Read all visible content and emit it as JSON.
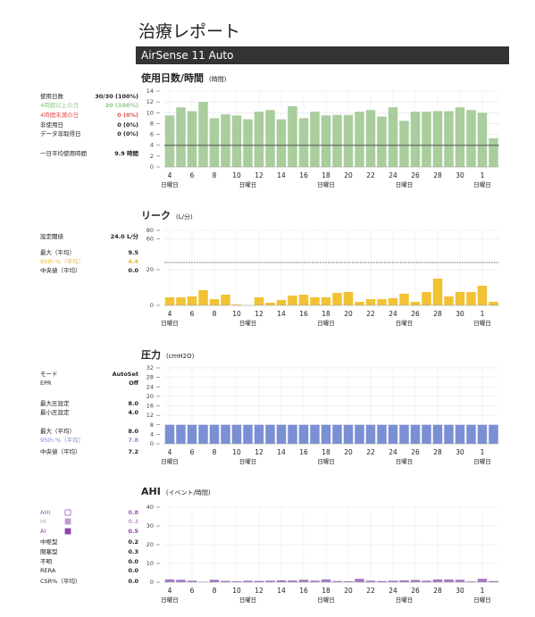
{
  "header": {
    "title": "治療レポート",
    "device": "AirSense 11 Auto"
  },
  "chart_data": [
    {
      "type": "bar",
      "title": "使用日数/時間",
      "unit": "(時間)",
      "color": "#a9cd9d",
      "grid": true,
      "reference_line": 4,
      "categories": [
        "4",
        null,
        "6",
        null,
        "8",
        null,
        "10",
        null,
        "12",
        null,
        "14",
        null,
        "16",
        null,
        "18",
        null,
        "20",
        null,
        "22",
        null,
        "24",
        null,
        "26",
        null,
        "28",
        null,
        "30",
        null,
        "1",
        null
      ],
      "week_labels": [
        "日曜日",
        null,
        null,
        null,
        null,
        null,
        null,
        "日曜日",
        null,
        null,
        null,
        null,
        null,
        null,
        "日曜日",
        null,
        null,
        null,
        null,
        null,
        null,
        "日曜日",
        null,
        null,
        null,
        null,
        null,
        null,
        "日曜日",
        null
      ],
      "values": [
        9.5,
        11,
        10.3,
        12,
        9,
        9.7,
        9.5,
        8.8,
        10.2,
        10.5,
        8.8,
        11.2,
        9,
        10.2,
        9.5,
        9.6,
        9.6,
        10.2,
        10.5,
        9.3,
        11,
        8.5,
        10.2,
        10.2,
        10.3,
        10.3,
        11,
        10.5,
        10,
        5.3
      ],
      "ylim": [
        0,
        14
      ],
      "yticks": [
        0,
        2,
        4,
        6,
        8,
        10,
        12,
        14
      ],
      "stats": [
        {
          "label": "使用日数",
          "value": "30/30 (100%)"
        },
        {
          "label": "4時間以上の日",
          "value": "30 (100%)",
          "color": "#8fc48a"
        },
        {
          "label": "4時間未満の日",
          "value": "0 (0%)",
          "color": "#e0504a"
        },
        {
          "label": "非使用日",
          "value": "0 (0%)"
        },
        {
          "label": "データ非取得日",
          "value": "0 (0%)"
        },
        {
          "label": "一日平均使用時間",
          "value": "9.9 時間"
        }
      ]
    },
    {
      "type": "bar",
      "title": "リーク",
      "unit": "(L/分)",
      "color": "#f2c234",
      "grid": true,
      "threshold": 24,
      "categories": [
        "4",
        null,
        "6",
        null,
        "8",
        null,
        "10",
        null,
        "12",
        null,
        "14",
        null,
        "16",
        null,
        "18",
        null,
        "20",
        null,
        "22",
        null,
        "24",
        null,
        "26",
        null,
        "28",
        null,
        "30",
        null,
        "1",
        null
      ],
      "week_labels": [
        "日曜日",
        null,
        null,
        null,
        null,
        null,
        null,
        "日曜日",
        null,
        null,
        null,
        null,
        null,
        null,
        "日曜日",
        null,
        null,
        null,
        null,
        null,
        null,
        "日曜日",
        null,
        null,
        null,
        null,
        null,
        null,
        "日曜日",
        null
      ],
      "values": [
        4.5,
        4.5,
        5,
        8.5,
        3.5,
        6,
        0.5,
        0,
        4.5,
        1.5,
        3,
        5.5,
        6,
        4.5,
        4.5,
        7,
        7.5,
        2,
        3.5,
        3.5,
        4,
        6.5,
        2,
        7.5,
        15,
        5,
        7.5,
        7.5,
        11,
        2
      ],
      "ylim": [
        0,
        80
      ],
      "yticks": [
        0,
        20,
        60,
        80
      ],
      "stats": [
        {
          "label": "設定閾値",
          "value": "24.0 L/分"
        },
        {
          "label": "最大（平均）",
          "value": "9.5"
        },
        {
          "label": "95th %（平均）",
          "value": "4.4",
          "color": "#e8b830"
        },
        {
          "label": "中央値（平均）",
          "value": "0.0"
        }
      ]
    },
    {
      "type": "bar",
      "title": "圧力",
      "unit": "(cmH2O)",
      "color": "#7b8fd4",
      "grid": true,
      "categories": [
        "4",
        null,
        "6",
        null,
        "8",
        null,
        "10",
        null,
        "12",
        null,
        "14",
        null,
        "16",
        null,
        "18",
        null,
        "20",
        null,
        "22",
        null,
        "24",
        null,
        "26",
        null,
        "28",
        null,
        "30",
        null,
        "1",
        null
      ],
      "week_labels": [
        "日曜日",
        null,
        null,
        null,
        null,
        null,
        null,
        "日曜日",
        null,
        null,
        null,
        null,
        null,
        null,
        "日曜日",
        null,
        null,
        null,
        null,
        null,
        null,
        "日曜日",
        null,
        null,
        null,
        null,
        null,
        null,
        "日曜日",
        null
      ],
      "values": [
        8,
        8,
        8,
        8,
        8,
        8,
        8,
        8,
        8,
        8,
        8,
        8,
        8,
        8,
        8,
        8,
        8,
        8,
        8,
        8,
        8,
        8,
        8,
        8,
        8,
        8,
        8,
        8,
        8,
        8
      ],
      "ylim": [
        0,
        32
      ],
      "yticks": [
        0,
        4,
        8,
        12,
        16,
        20,
        24,
        28,
        32
      ],
      "stats": [
        {
          "label": "モード",
          "value": "AutoSet"
        },
        {
          "label": "EPR",
          "value": "Off"
        },
        {
          "label": "最大圧設定",
          "value": "8.0"
        },
        {
          "label": "最小圧設定",
          "value": "4.0"
        },
        {
          "label": "最大（平均）",
          "value": "8.0"
        },
        {
          "label": "95th %（平均）",
          "value": "7.8",
          "color": "#7b8fd4"
        },
        {
          "label": "中央値（平均）",
          "value": "7.2"
        }
      ]
    },
    {
      "type": "bar",
      "title": "AHI",
      "unit": "(イベント/時間)",
      "color": "#a57ac4",
      "grid": true,
      "categories": [
        "4",
        null,
        "6",
        null,
        "8",
        null,
        "10",
        null,
        "12",
        null,
        "14",
        null,
        "16",
        null,
        "18",
        null,
        "20",
        null,
        "22",
        null,
        "24",
        null,
        "26",
        null,
        "28",
        null,
        "30",
        null,
        "1",
        null
      ],
      "week_labels": [
        "日曜日",
        null,
        null,
        null,
        null,
        null,
        null,
        "日曜日",
        null,
        null,
        null,
        null,
        null,
        null,
        "日曜日",
        null,
        null,
        null,
        null,
        null,
        null,
        "日曜日",
        null,
        null,
        null,
        null,
        null,
        null,
        "日曜日",
        null
      ],
      "values": [
        1.5,
        1.3,
        0.8,
        0.2,
        1.3,
        0.7,
        0.5,
        0.8,
        0.7,
        0.8,
        1,
        0.9,
        1.3,
        0.8,
        1.5,
        0.6,
        0.5,
        1.8,
        0.8,
        0.6,
        0.8,
        1,
        1.2,
        0.8,
        1.5,
        1.5,
        1.3,
        0.4,
        1.8,
        0.6
      ],
      "ylim": [
        0,
        40
      ],
      "yticks": [
        0,
        10,
        20,
        30,
        40
      ],
      "stats": [
        {
          "label": "AHI",
          "value": "0.8",
          "color": "#9b59b6",
          "swatch": "outline"
        },
        {
          "label": "HI",
          "value": "0.3",
          "color": "#c39bd3",
          "swatch": "fill"
        },
        {
          "label": "AI",
          "value": "0.5",
          "color": "#8e44ad",
          "swatch": "fill"
        },
        {
          "label": "中枢型",
          "value": "0.2"
        },
        {
          "label": "閉塞型",
          "value": "0.3"
        },
        {
          "label": "不明",
          "value": "0.0"
        },
        {
          "label": "RERA",
          "value": "0.0"
        },
        {
          "label": "CSR%（平均）",
          "value": "0.0"
        }
      ]
    }
  ]
}
